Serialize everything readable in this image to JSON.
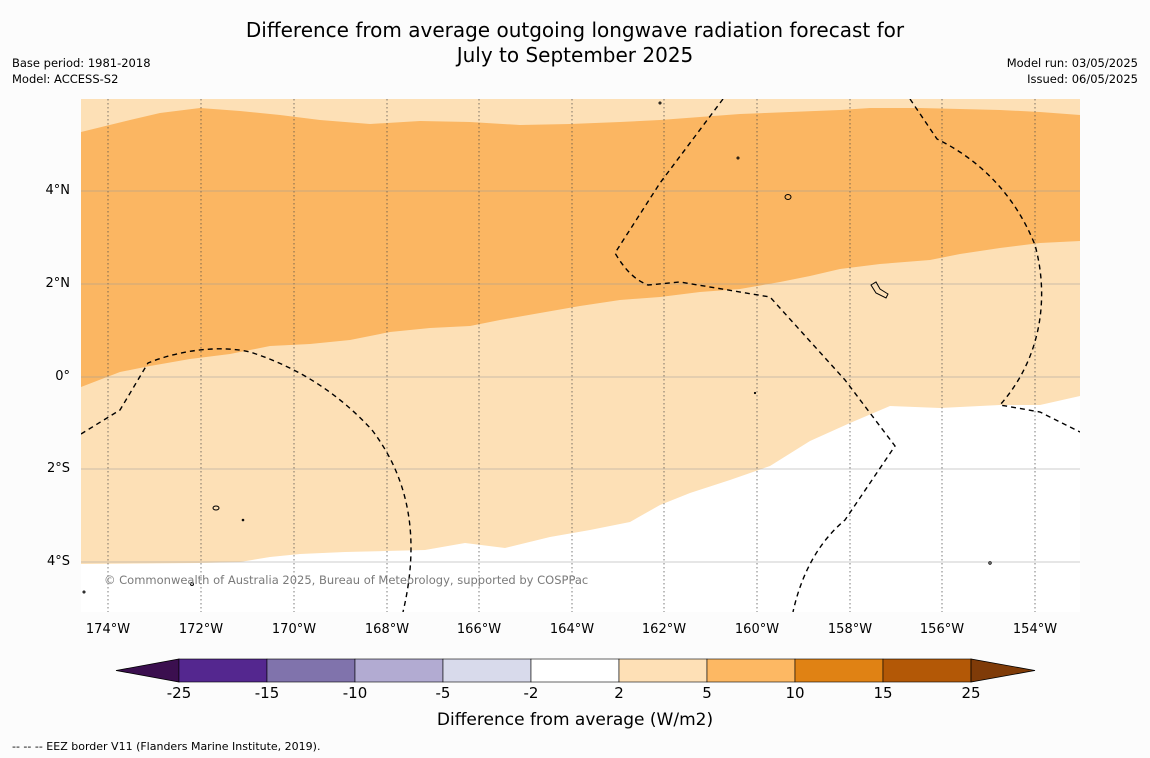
{
  "header": {
    "title_line1": "Difference from average outgoing longwave radiation forecast for",
    "title_line2": "July to September 2025",
    "base_period": "Base period: 1981-2018",
    "model": "Model: ACCESS-S2",
    "model_run": "Model run: 03/05/2025",
    "issued": "Issued: 06/05/2025"
  },
  "map": {
    "lat_labels": [
      "4°N",
      "2°N",
      "0°",
      "2°S",
      "4°S"
    ],
    "lon_labels": [
      "174°W",
      "172°W",
      "170°W",
      "168°W",
      "166°W",
      "164°W",
      "162°W",
      "160°W",
      "158°W",
      "156°W",
      "154°W"
    ],
    "copyright": "© Commonwealth of Australia 2025, Bureau of Meteorology, supported by COSPPac",
    "fill_colors": {
      "light": "#fde0b6",
      "medium": "#fbb662",
      "neutral": "#ffffff"
    }
  },
  "colorbar": {
    "ticks": [
      "-25",
      "-15",
      "-10",
      "-5",
      "-2",
      "2",
      "5",
      "10",
      "15",
      "25"
    ],
    "colors": [
      "#3b0f4f",
      "#54278f",
      "#8073ac",
      "#b2abd2",
      "#d8daeb",
      "#ffffff",
      "#fee0b6",
      "#fdb863",
      "#e08214",
      "#b35806",
      "#7f3b08"
    ],
    "label": "Difference from average (W/m2)"
  },
  "footnote": "--  --  -- EEZ border V11 (Flanders Marine Institute, 2019)."
}
